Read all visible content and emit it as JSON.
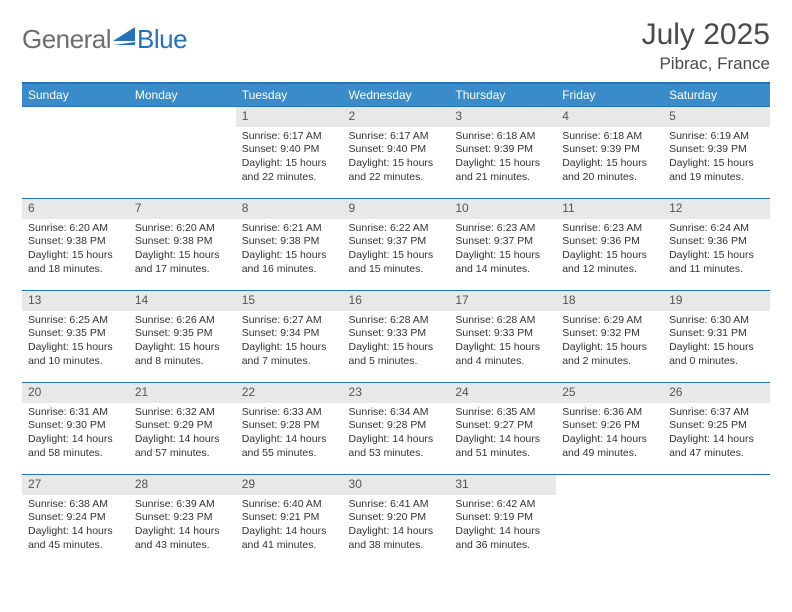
{
  "brand": {
    "word1": "General",
    "word2": "Blue"
  },
  "title": "July 2025",
  "location": "Pibrac, France",
  "weekdays": [
    "Sunday",
    "Monday",
    "Tuesday",
    "Wednesday",
    "Thursday",
    "Friday",
    "Saturday"
  ],
  "colors": {
    "header_bg": "#3a8bc9",
    "border": "#2573b8",
    "daynum_bg": "#e8e8e8",
    "text": "#333333",
    "logo_gray": "#6e6e6e",
    "logo_blue": "#2573b8"
  },
  "first_weekday_index": 2,
  "days": [
    {
      "n": 1,
      "sunrise": "Sunrise: 6:17 AM",
      "sunset": "Sunset: 9:40 PM",
      "daylight": "Daylight: 15 hours and 22 minutes."
    },
    {
      "n": 2,
      "sunrise": "Sunrise: 6:17 AM",
      "sunset": "Sunset: 9:40 PM",
      "daylight": "Daylight: 15 hours and 22 minutes."
    },
    {
      "n": 3,
      "sunrise": "Sunrise: 6:18 AM",
      "sunset": "Sunset: 9:39 PM",
      "daylight": "Daylight: 15 hours and 21 minutes."
    },
    {
      "n": 4,
      "sunrise": "Sunrise: 6:18 AM",
      "sunset": "Sunset: 9:39 PM",
      "daylight": "Daylight: 15 hours and 20 minutes."
    },
    {
      "n": 5,
      "sunrise": "Sunrise: 6:19 AM",
      "sunset": "Sunset: 9:39 PM",
      "daylight": "Daylight: 15 hours and 19 minutes."
    },
    {
      "n": 6,
      "sunrise": "Sunrise: 6:20 AM",
      "sunset": "Sunset: 9:38 PM",
      "daylight": "Daylight: 15 hours and 18 minutes."
    },
    {
      "n": 7,
      "sunrise": "Sunrise: 6:20 AM",
      "sunset": "Sunset: 9:38 PM",
      "daylight": "Daylight: 15 hours and 17 minutes."
    },
    {
      "n": 8,
      "sunrise": "Sunrise: 6:21 AM",
      "sunset": "Sunset: 9:38 PM",
      "daylight": "Daylight: 15 hours and 16 minutes."
    },
    {
      "n": 9,
      "sunrise": "Sunrise: 6:22 AM",
      "sunset": "Sunset: 9:37 PM",
      "daylight": "Daylight: 15 hours and 15 minutes."
    },
    {
      "n": 10,
      "sunrise": "Sunrise: 6:23 AM",
      "sunset": "Sunset: 9:37 PM",
      "daylight": "Daylight: 15 hours and 14 minutes."
    },
    {
      "n": 11,
      "sunrise": "Sunrise: 6:23 AM",
      "sunset": "Sunset: 9:36 PM",
      "daylight": "Daylight: 15 hours and 12 minutes."
    },
    {
      "n": 12,
      "sunrise": "Sunrise: 6:24 AM",
      "sunset": "Sunset: 9:36 PM",
      "daylight": "Daylight: 15 hours and 11 minutes."
    },
    {
      "n": 13,
      "sunrise": "Sunrise: 6:25 AM",
      "sunset": "Sunset: 9:35 PM",
      "daylight": "Daylight: 15 hours and 10 minutes."
    },
    {
      "n": 14,
      "sunrise": "Sunrise: 6:26 AM",
      "sunset": "Sunset: 9:35 PM",
      "daylight": "Daylight: 15 hours and 8 minutes."
    },
    {
      "n": 15,
      "sunrise": "Sunrise: 6:27 AM",
      "sunset": "Sunset: 9:34 PM",
      "daylight": "Daylight: 15 hours and 7 minutes."
    },
    {
      "n": 16,
      "sunrise": "Sunrise: 6:28 AM",
      "sunset": "Sunset: 9:33 PM",
      "daylight": "Daylight: 15 hours and 5 minutes."
    },
    {
      "n": 17,
      "sunrise": "Sunrise: 6:28 AM",
      "sunset": "Sunset: 9:33 PM",
      "daylight": "Daylight: 15 hours and 4 minutes."
    },
    {
      "n": 18,
      "sunrise": "Sunrise: 6:29 AM",
      "sunset": "Sunset: 9:32 PM",
      "daylight": "Daylight: 15 hours and 2 minutes."
    },
    {
      "n": 19,
      "sunrise": "Sunrise: 6:30 AM",
      "sunset": "Sunset: 9:31 PM",
      "daylight": "Daylight: 15 hours and 0 minutes."
    },
    {
      "n": 20,
      "sunrise": "Sunrise: 6:31 AM",
      "sunset": "Sunset: 9:30 PM",
      "daylight": "Daylight: 14 hours and 58 minutes."
    },
    {
      "n": 21,
      "sunrise": "Sunrise: 6:32 AM",
      "sunset": "Sunset: 9:29 PM",
      "daylight": "Daylight: 14 hours and 57 minutes."
    },
    {
      "n": 22,
      "sunrise": "Sunrise: 6:33 AM",
      "sunset": "Sunset: 9:28 PM",
      "daylight": "Daylight: 14 hours and 55 minutes."
    },
    {
      "n": 23,
      "sunrise": "Sunrise: 6:34 AM",
      "sunset": "Sunset: 9:28 PM",
      "daylight": "Daylight: 14 hours and 53 minutes."
    },
    {
      "n": 24,
      "sunrise": "Sunrise: 6:35 AM",
      "sunset": "Sunset: 9:27 PM",
      "daylight": "Daylight: 14 hours and 51 minutes."
    },
    {
      "n": 25,
      "sunrise": "Sunrise: 6:36 AM",
      "sunset": "Sunset: 9:26 PM",
      "daylight": "Daylight: 14 hours and 49 minutes."
    },
    {
      "n": 26,
      "sunrise": "Sunrise: 6:37 AM",
      "sunset": "Sunset: 9:25 PM",
      "daylight": "Daylight: 14 hours and 47 minutes."
    },
    {
      "n": 27,
      "sunrise": "Sunrise: 6:38 AM",
      "sunset": "Sunset: 9:24 PM",
      "daylight": "Daylight: 14 hours and 45 minutes."
    },
    {
      "n": 28,
      "sunrise": "Sunrise: 6:39 AM",
      "sunset": "Sunset: 9:23 PM",
      "daylight": "Daylight: 14 hours and 43 minutes."
    },
    {
      "n": 29,
      "sunrise": "Sunrise: 6:40 AM",
      "sunset": "Sunset: 9:21 PM",
      "daylight": "Daylight: 14 hours and 41 minutes."
    },
    {
      "n": 30,
      "sunrise": "Sunrise: 6:41 AM",
      "sunset": "Sunset: 9:20 PM",
      "daylight": "Daylight: 14 hours and 38 minutes."
    },
    {
      "n": 31,
      "sunrise": "Sunrise: 6:42 AM",
      "sunset": "Sunset: 9:19 PM",
      "daylight": "Daylight: 14 hours and 36 minutes."
    }
  ]
}
